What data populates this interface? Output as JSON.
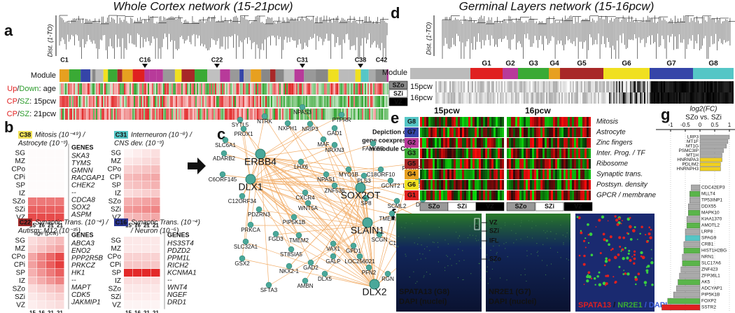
{
  "panel_labels": [
    "a",
    "b",
    "c",
    "d",
    "e",
    "f",
    "g"
  ],
  "a": {
    "title": "Whole Cortex network (15-21pcw)",
    "y_axis": "Dist. (1-TO)",
    "clusters": [
      "C1",
      "C16",
      "C22",
      "C31",
      "C38",
      "C42"
    ],
    "module": "Module",
    "rows": [
      {
        "parts": [
          "Up",
          "/",
          "Down",
          ": age"
        ]
      },
      {
        "parts": [
          "CP",
          "/",
          "SZ",
          ": 15pcw"
        ]
      },
      {
        "parts": [
          "CP",
          "/",
          "SZ",
          ": 21pcw"
        ]
      }
    ]
  },
  "b": {
    "layers": [
      "SG",
      "MZ",
      "CPo",
      "CPi",
      "SP",
      "IZ",
      "SZo",
      "SZi",
      "VZ"
    ],
    "ages": [
      "15",
      "16",
      "21",
      "21"
    ],
    "age_label": "age (pcw)",
    "genes_header": "GENES",
    "panels": [
      {
        "tag": "C38",
        "color": "#f2e25a",
        "lines": [
          "Mitosis (10⁻⁴⁹) /",
          "Astrocyte (10⁻³)"
        ],
        "genes": [
          "SKA3",
          "TYMS",
          "GMNN",
          "RACGAP1",
          "CHEK2",
          "--",
          "CDCA8",
          "SOX2",
          "ASPM"
        ]
      },
      {
        "tag": "C31",
        "color": "#55c6c6",
        "lines": [
          "Interneuron (10⁻⁸) /",
          "CNS dev. (10⁻³)"
        ],
        "genes": []
      },
      {
        "tag": "C22",
        "color": "#9e2a2a",
        "lines": [
          "Synaptic Trans. (10⁻⁴) /",
          "Autism: M12 (10⁻³⁵)"
        ],
        "genes": [
          "ABCA3",
          "ENO2",
          "PPP2R5B",
          "PRKCZ",
          "HK1",
          "--",
          "MAPT",
          "CDK5",
          "JAKMIP1"
        ]
      },
      {
        "tag": "C16",
        "color": "#2a3590",
        "lines": [
          "Synaptic Trans. (10⁻⁴)",
          "/ Neuron (10⁻⁵)"
        ],
        "genes": [
          "HS3ST4",
          "PDZD2",
          "PPM1L",
          "RICH2",
          "KCNMA1",
          "--",
          "WNT4",
          "NGEF",
          "DRD1"
        ]
      }
    ]
  },
  "c": {
    "title": [
      "Depiction of",
      "gene coexpression",
      "in module C31"
    ],
    "hubs": [
      "ERBB4",
      "DLX1",
      "SOX2OT",
      "SLAIN1",
      "DLX2"
    ],
    "nodes": [
      "SYTL5",
      "NTRK",
      "NPAS3",
      "PTPRR",
      "NXPH1",
      "NRIP3",
      "PROX1",
      "GAD1",
      "SLC6A1",
      "MAF",
      "NRXN3",
      "FAM65B",
      "ADARB2",
      "LHX6",
      "MYO1B",
      "C18ORF10",
      "POU2F1",
      "C6ORF145",
      "NPAS1",
      "PLS3",
      "GCNT2",
      "ZNF536",
      "LOC150622",
      "CXCR4",
      "SP8",
      "C12ORF34",
      "WNT5A",
      "SCML2",
      "DLX6",
      "PDZRN3",
      "PIP5K1B",
      "TMEM123",
      "PDZRN4",
      "PRKCA",
      "FGD3",
      "TMEM2",
      "VAX1",
      "GPD1",
      "SCGN",
      "C19ORF30",
      "FAM70A",
      "SLC32A1",
      "GALP",
      "LOC256021",
      "GAS2L3",
      "ST8SIA5",
      "GSX2",
      "NKX2-1",
      "GAD2",
      "DLX5",
      "PFN2",
      "RGN",
      "AMBN",
      "SFTA3"
    ]
  },
  "d": {
    "title": "Germinal Layers network (15-16pcw)",
    "y_axis": "Dist. (1-TO)",
    "groups": [
      "G1",
      "G2",
      "G3",
      "G4",
      "G5",
      "G6",
      "G7",
      "G8"
    ],
    "group_colors": [
      "#e02020",
      "#b83a9a",
      "#3aaa35",
      "#e7a020",
      "#a82828",
      "#f0e020",
      "#3545a8",
      "#55c6c6"
    ],
    "module": "Module",
    "zones": [
      "SZo",
      "SZi",
      "VZ"
    ],
    "ages": [
      "15pcw",
      "16pcw"
    ]
  },
  "e": {
    "columns": [
      "15pcw",
      "16pcw"
    ],
    "groups": [
      "G8",
      "G7",
      "G2",
      "G3",
      "G5",
      "G4",
      "G6",
      "G1"
    ],
    "group_colors": [
      "#55c6c6",
      "#3545a8",
      "#b83a9a",
      "#3aaa35",
      "#a82828",
      "#e7a020",
      "#f0e020",
      "#e02020"
    ],
    "functions": [
      "Mitosis",
      "Astrocyte",
      "Zinc fingers",
      "Inter. Prog. / TF",
      "Ribosome",
      "Synaptic trans.",
      "Postsyn. density",
      "GPCR / membrane"
    ],
    "zones": [
      "SZo",
      "SZi",
      "VZ",
      "SZo",
      "SZi",
      "VZ"
    ]
  },
  "f": {
    "zone_marks": [
      "I",
      "O"
    ],
    "layers": [
      "VZ",
      "SZi",
      "IFL",
      "SZo"
    ],
    "captions": [
      [
        "SPATA13 (G8)",
        "DAPI (nuclei)"
      ],
      [
        "NR2E1 (G7)",
        "DAPI (nuclei)"
      ]
    ],
    "merge": [
      "SPATA13",
      " / ",
      "NR2E1",
      " / DAPI"
    ]
  },
  "g": {
    "title": "log2(FC)",
    "subtitle": "SZo vs. SZi",
    "xlim": [
      -1.5,
      1.2
    ],
    "xticks": [
      -1,
      -0.5,
      0,
      0.5,
      1
    ],
    "up_genes": [
      "LRP3",
      "MT1F",
      "MT1G",
      "PSMC3IP",
      "MT1H",
      "HNRNPA3",
      "PDLIM2",
      "HNRNPH3"
    ],
    "up_values": [
      1.0,
      0.95,
      0.9,
      0.8,
      0.75,
      0.75,
      0.7,
      0.7
    ],
    "up_colors": [
      "#aaa",
      "#aaa",
      "#aaa",
      "#aaa",
      "#aaa",
      "#f0d020",
      "#f0d020",
      "#f0d020"
    ],
    "down_genes": [
      "CDC42EP3",
      "MLLT4",
      "TP53INP1",
      "DDX55",
      "MAPK10",
      "KIAA1370",
      "AMOTL2",
      "LRP8",
      "SPAG9",
      "CRB1",
      "HIST1H2BG",
      "NRN1",
      "SLC17A6",
      "ZNF423",
      "ZFP36L1",
      "AK5",
      "ADCYAP1",
      "PIP5K1B",
      "FOXP2",
      "SSTR2"
    ],
    "down_values": [
      -0.3,
      -0.35,
      -0.35,
      -0.4,
      -0.4,
      -0.45,
      -0.45,
      -0.5,
      -0.5,
      -0.55,
      -0.55,
      -0.6,
      -0.6,
      -0.65,
      -0.7,
      -0.75,
      -0.8,
      -0.9,
      -1.1,
      -1.3
    ],
    "down_colors": [
      "#aaa",
      "#5ab54a",
      "#aaa",
      "#aaa",
      "#5ab54a",
      "#aaa",
      "#5ab54a",
      "#aaa",
      "#55c6c6",
      "#aaa",
      "#5ab54a",
      "#aaa",
      "#5ab54a",
      "#aaa",
      "#aaa",
      "#5ab54a",
      "#aaa",
      "#aaa",
      "#5ab54a",
      "#e02020"
    ]
  }
}
